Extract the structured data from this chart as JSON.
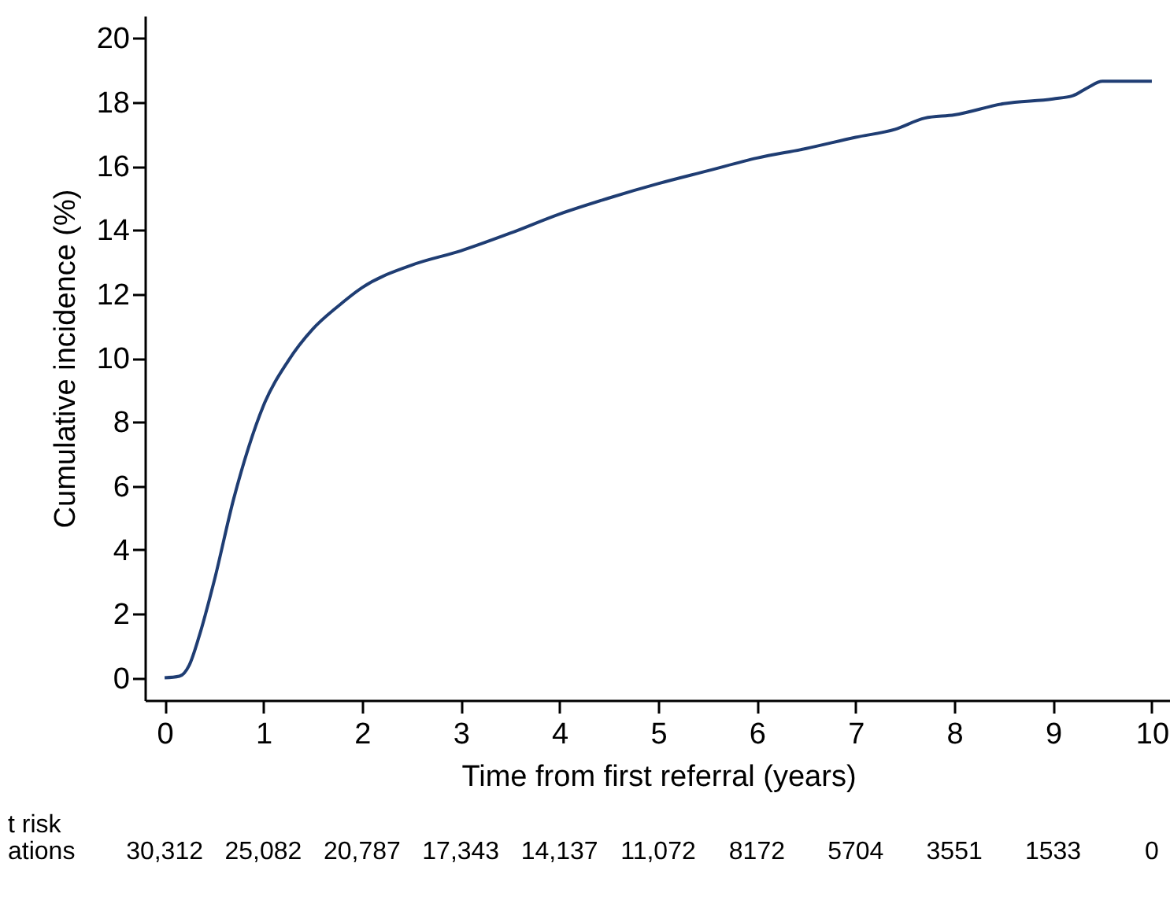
{
  "chart_data": [
    {
      "type": "line",
      "xlabel": "Time from first referral (years)",
      "ylabel": "Cumulative incidence (%)",
      "x": [
        0,
        0.15,
        0.25,
        0.35,
        0.5,
        0.7,
        0.85,
        1,
        1.25,
        1.5,
        1.75,
        2,
        2.5,
        3,
        3.5,
        4,
        4.5,
        5,
        5.5,
        6,
        6.5,
        7,
        7.4,
        7.7,
        8,
        8.5,
        9,
        9.2,
        9.35,
        9.5,
        10
      ],
      "series": [
        {
          "color": "#1f3d73",
          "values": [
            0,
            0.05,
            0.4,
            1.3,
            3.0,
            5.6,
            7.2,
            8.5,
            9.9,
            10.9,
            11.6,
            12.2,
            12.9,
            13.35,
            13.9,
            14.5,
            15.0,
            15.45,
            15.85,
            16.25,
            16.55,
            16.9,
            17.15,
            17.5,
            17.6,
            17.95,
            18.1,
            18.2,
            18.45,
            18.65,
            18.65
          ]
        }
      ],
      "xlim": [
        -0.2,
        10.2
      ],
      "ylim": [
        -0.7,
        20.7
      ],
      "xticks": [
        0,
        1,
        2,
        3,
        4,
        5,
        6,
        7,
        8,
        9,
        10
      ],
      "yticks": [
        0,
        2,
        4,
        6,
        8,
        10,
        12,
        14,
        16,
        18,
        20
      ],
      "grid": false,
      "legend": false
    },
    {
      "type": "other",
      "annotations": [
        "t risk",
        "ations"
      ],
      "categories": [
        "30,312",
        "25,082",
        "20,787",
        "17,343",
        "14,137",
        "11,072",
        "8172",
        "5704",
        "3551",
        "1533",
        "0"
      ]
    }
  ]
}
